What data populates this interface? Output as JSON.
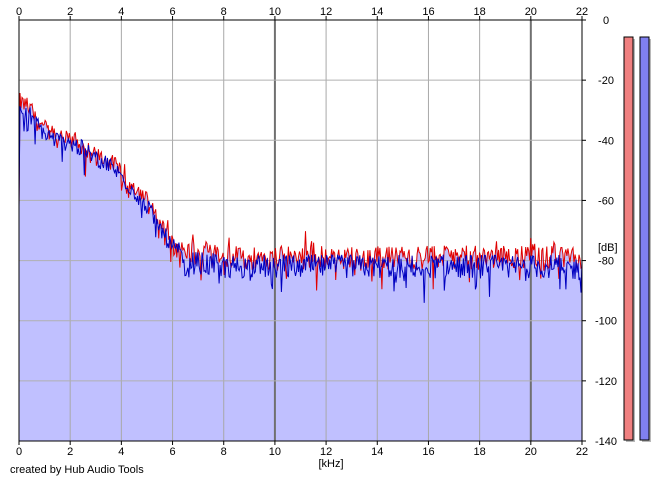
{
  "chart_data": {
    "type": "area",
    "title": "",
    "xlabel": "[kHz]",
    "ylabel": "[dB]",
    "xlim": [
      0,
      22
    ],
    "ylim": [
      -140,
      0
    ],
    "x_ticks": [
      "0",
      "2",
      "4",
      "6",
      "8",
      "10",
      "12",
      "14",
      "16",
      "18",
      "20",
      "22"
    ],
    "y_ticks": [
      "0",
      "-20",
      "-40",
      "-60",
      "-80",
      "-100",
      "-120",
      "-140"
    ],
    "grid": true,
    "series": [
      {
        "color": "#e00000",
        "x": [
          0,
          0.5,
          1,
          1.5,
          2,
          2.5,
          3,
          3.5,
          4,
          4.5,
          5,
          5.5,
          6,
          6.5,
          7,
          8,
          9,
          10,
          11,
          12,
          13,
          14,
          15,
          16,
          17,
          18,
          19,
          20,
          21,
          22
        ],
        "values": [
          -27,
          -30,
          -36,
          -39,
          -40,
          -42,
          -45,
          -47,
          -50,
          -55,
          -60,
          -67,
          -74,
          -77,
          -78,
          -79,
          -79,
          -79,
          -79,
          -79,
          -79,
          -79,
          -79,
          -79,
          -79,
          -79,
          -79,
          -78,
          -79,
          -80
        ]
      },
      {
        "color": "#0000c0",
        "x": [
          0,
          0.5,
          1,
          1.5,
          2,
          2.5,
          3,
          3.5,
          4,
          4.5,
          5,
          5.5,
          6,
          6.5,
          7,
          8,
          9,
          10,
          11,
          12,
          13,
          14,
          15,
          16,
          17,
          18,
          19,
          20,
          21,
          22
        ],
        "values": [
          -29,
          -32,
          -38,
          -40,
          -41,
          -43,
          -46,
          -48,
          -52,
          -57,
          -62,
          -69,
          -76,
          -80,
          -81,
          -82,
          -82,
          -82,
          -82,
          -82,
          -82,
          -82,
          -82,
          -82,
          -82,
          -82,
          -82,
          -82,
          -82,
          -83
        ]
      }
    ],
    "level_meters": [
      {
        "color": "#f08080",
        "value_db": 0
      },
      {
        "color": "#8080f0",
        "value_db": 0
      }
    ],
    "area_fill": "#c0c0ff",
    "credit": "created by Hub Audio Tools"
  }
}
